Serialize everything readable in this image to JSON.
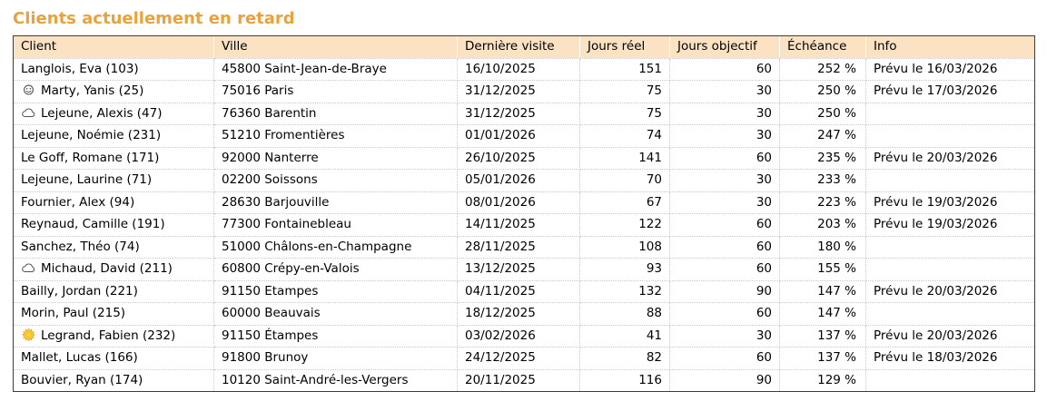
{
  "title": "Clients actuellement en retard",
  "colors": {
    "title_accent": "#E8A33C",
    "header_background": "#FAE2C2",
    "outer_border": "#3C3C3C",
    "grid_dotted": "#C9C9C9",
    "sun_icon_fill": "#FFD43B",
    "sun_icon_stroke": "#DFA118",
    "outline_icon_gray": "#555555"
  },
  "table": {
    "columns": [
      {
        "key": "client",
        "label": "Client"
      },
      {
        "key": "ville",
        "label": "Ville"
      },
      {
        "key": "derniere_visite",
        "label": "Dernière visite"
      },
      {
        "key": "jours_reel",
        "label": "Jours réel"
      },
      {
        "key": "jours_objectif",
        "label": "Jours objectif"
      },
      {
        "key": "echeance",
        "label": "Échéance"
      },
      {
        "key": "info",
        "label": "Info"
      }
    ],
    "rows": [
      {
        "icon": null,
        "client": "Langlois, Eva (103)",
        "ville": "45800 Saint-Jean-de-Braye",
        "derniere_visite": "16/10/2025",
        "jours_reel": 151,
        "jours_objectif": 60,
        "echeance": "252 %",
        "info": "Prévu le 16/03/2026"
      },
      {
        "icon": "smiley",
        "client": "Marty, Yanis (25)",
        "ville": "75016 Paris",
        "derniere_visite": "31/12/2025",
        "jours_reel": 75,
        "jours_objectif": 30,
        "echeance": "250 %",
        "info": "Prévu le 17/03/2026"
      },
      {
        "icon": "cloud",
        "client": "Lejeune, Alexis (47)",
        "ville": "76360 Barentin",
        "derniere_visite": "31/12/2025",
        "jours_reel": 75,
        "jours_objectif": 30,
        "echeance": "250 %",
        "info": ""
      },
      {
        "icon": null,
        "client": "Lejeune, Noémie (231)",
        "ville": "51210 Fromentières",
        "derniere_visite": "01/01/2026",
        "jours_reel": 74,
        "jours_objectif": 30,
        "echeance": "247 %",
        "info": ""
      },
      {
        "icon": null,
        "client": "Le Goff, Romane (171)",
        "ville": "92000 Nanterre",
        "derniere_visite": "26/10/2025",
        "jours_reel": 141,
        "jours_objectif": 60,
        "echeance": "235 %",
        "info": "Prévu le 20/03/2026"
      },
      {
        "icon": null,
        "client": "Lejeune, Laurine (71)",
        "ville": "02200 Soissons",
        "derniere_visite": "05/01/2026",
        "jours_reel": 70,
        "jours_objectif": 30,
        "echeance": "233 %",
        "info": ""
      },
      {
        "icon": null,
        "client": "Fournier, Alex (94)",
        "ville": "28630 Barjouville",
        "derniere_visite": "08/01/2026",
        "jours_reel": 67,
        "jours_objectif": 30,
        "echeance": "223 %",
        "info": "Prévu le 19/03/2026"
      },
      {
        "icon": null,
        "client": "Reynaud, Camille (191)",
        "ville": "77300 Fontainebleau",
        "derniere_visite": "14/11/2025",
        "jours_reel": 122,
        "jours_objectif": 60,
        "echeance": "203 %",
        "info": "Prévu le 19/03/2026"
      },
      {
        "icon": null,
        "client": "Sanchez, Théo (74)",
        "ville": "51000 Châlons-en-Champagne",
        "derniere_visite": "28/11/2025",
        "jours_reel": 108,
        "jours_objectif": 60,
        "echeance": "180 %",
        "info": ""
      },
      {
        "icon": "cloud",
        "client": "Michaud, David (211)",
        "ville": "60800 Crépy-en-Valois",
        "derniere_visite": "13/12/2025",
        "jours_reel": 93,
        "jours_objectif": 60,
        "echeance": "155 %",
        "info": ""
      },
      {
        "icon": null,
        "client": "Bailly, Jordan (221)",
        "ville": "91150 Etampes",
        "derniere_visite": "04/11/2025",
        "jours_reel": 132,
        "jours_objectif": 90,
        "echeance": "147 %",
        "info": "Prévu le 20/03/2026"
      },
      {
        "icon": null,
        "client": "Morin, Paul (215)",
        "ville": "60000 Beauvais",
        "derniere_visite": "18/12/2025",
        "jours_reel": 88,
        "jours_objectif": 60,
        "echeance": "147 %",
        "info": ""
      },
      {
        "icon": "sun",
        "client": "Legrand, Fabien (232)",
        "ville": "91150 Étampes",
        "derniere_visite": "03/02/2026",
        "jours_reel": 41,
        "jours_objectif": 30,
        "echeance": "137 %",
        "info": "Prévu le 20/03/2026"
      },
      {
        "icon": null,
        "client": "Mallet, Lucas (166)",
        "ville": "91800 Brunoy",
        "derniere_visite": "24/12/2025",
        "jours_reel": 82,
        "jours_objectif": 60,
        "echeance": "137 %",
        "info": "Prévu le 18/03/2026"
      },
      {
        "icon": null,
        "client": "Bouvier, Ryan (174)",
        "ville": "10120 Saint-André-les-Vergers",
        "derniere_visite": "20/11/2025",
        "jours_reel": 116,
        "jours_objectif": 90,
        "echeance": "129 %",
        "info": ""
      }
    ]
  }
}
